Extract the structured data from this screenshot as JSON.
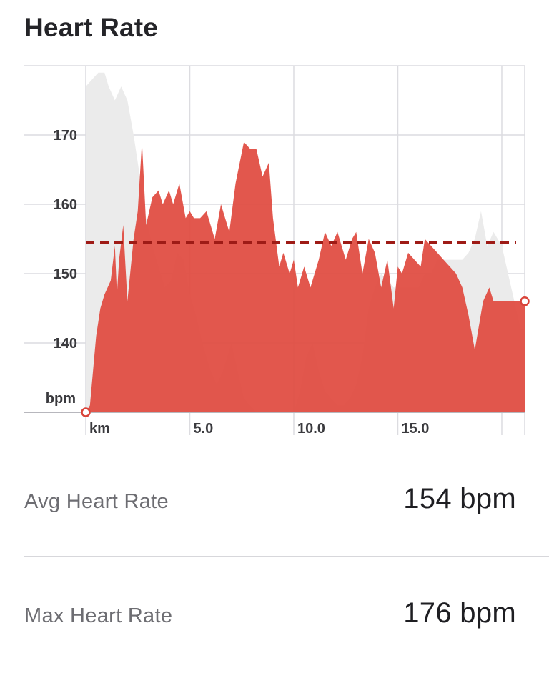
{
  "header": {
    "title": "Heart Rate"
  },
  "chart_data": {
    "type": "area",
    "xlabel": "km",
    "ylabel": "bpm",
    "xlim": [
      0,
      21.1
    ],
    "ylim": [
      130,
      180
    ],
    "x_ticks": [
      5,
      10,
      15
    ],
    "x_tick_labels": [
      "5.0",
      "10.0",
      "15.0"
    ],
    "y_ticks": [
      140,
      150,
      160,
      170
    ],
    "y_tick_labels": [
      "140",
      "150",
      "160",
      "170"
    ],
    "grid": true,
    "colors": {
      "hr": "#e04a3f",
      "elevation": "#ebebeb",
      "avg_line": "#9e1b16",
      "grid": "#dcdce0",
      "axis": "#b7b7bd"
    },
    "average": 154.5,
    "heart_rate": {
      "x": [
        0.0,
        0.2,
        0.5,
        0.7,
        0.9,
        1.2,
        1.4,
        1.5,
        1.6,
        1.8,
        2.0,
        2.1,
        2.3,
        2.5,
        2.7,
        2.9,
        3.2,
        3.5,
        3.7,
        4.0,
        4.2,
        4.5,
        4.8,
        5.0,
        5.2,
        5.5,
        5.8,
        6.2,
        6.5,
        6.9,
        7.2,
        7.6,
        7.9,
        8.2,
        8.5,
        8.8,
        9.0,
        9.3,
        9.5,
        9.8,
        10.0,
        10.2,
        10.5,
        10.8,
        11.2,
        11.5,
        11.8,
        12.1,
        12.5,
        12.8,
        13.0,
        13.3,
        13.6,
        13.9,
        14.2,
        14.5,
        14.8,
        15.0,
        15.2,
        15.5,
        15.8,
        16.1,
        16.3,
        16.6,
        16.9,
        17.2,
        17.5,
        17.8,
        18.1,
        18.4,
        18.7,
        19.1,
        19.4,
        19.6,
        19.9,
        20.1,
        20.4,
        20.6,
        20.9,
        21.1
      ],
      "y": [
        130,
        131,
        141,
        145,
        147,
        149,
        154,
        147,
        152,
        157,
        146,
        149,
        155,
        159,
        169,
        157,
        161,
        162,
        160,
        162,
        160,
        163,
        158,
        159,
        158,
        158,
        159,
        155,
        160,
        156,
        163,
        169,
        168,
        168,
        164,
        166,
        158,
        151,
        153,
        150,
        152,
        148,
        151,
        148,
        152,
        156,
        154,
        156,
        152,
        155,
        156,
        150,
        155,
        153,
        148,
        152,
        145,
        151,
        150,
        153,
        152,
        151,
        155,
        154,
        153,
        152,
        151,
        150,
        148,
        144,
        139,
        146,
        148,
        146,
        146,
        146,
        146,
        146,
        146,
        146
      ]
    },
    "elevation_profile": {
      "x": [
        0.0,
        0.3,
        0.6,
        0.9,
        1.1,
        1.4,
        1.7,
        2.0,
        2.3,
        2.6,
        2.9,
        3.2,
        3.5,
        3.8,
        4.1,
        4.4,
        4.7,
        5.0,
        5.3,
        5.6,
        6.0,
        6.3,
        6.6,
        7.0,
        7.3,
        7.6,
        7.9,
        8.2,
        8.5,
        8.8,
        9.1,
        9.4,
        9.7,
        10.0,
        10.3,
        10.6,
        10.9,
        11.2,
        11.5,
        11.8,
        12.1,
        12.4,
        12.7,
        13.0,
        13.3,
        13.6,
        13.9,
        14.2,
        14.5,
        14.8,
        15.1,
        15.4,
        15.7,
        16.0,
        16.3,
        16.6,
        16.9,
        17.2,
        17.5,
        17.8,
        18.1,
        18.4,
        18.7,
        19.0,
        19.3,
        19.6,
        20.0,
        20.3,
        20.6,
        20.9,
        21.1
      ],
      "y": [
        177,
        178,
        179,
        179,
        177,
        175,
        177,
        175,
        170,
        164,
        158,
        154,
        151,
        148,
        149,
        153,
        152,
        147,
        144,
        140,
        136,
        134,
        136,
        140,
        136,
        132,
        131,
        130,
        130,
        130,
        130,
        130,
        130,
        130,
        133,
        138,
        140,
        136,
        133,
        132,
        131,
        131,
        132,
        134,
        138,
        145,
        148,
        150,
        149,
        148,
        148,
        148,
        148,
        148,
        150,
        150,
        152,
        152,
        152,
        152,
        152,
        153,
        155,
        159,
        154,
        156,
        154,
        150,
        146,
        142,
        142
      ]
    }
  },
  "stats": [
    {
      "label": "Avg Heart Rate",
      "value": "154 bpm"
    },
    {
      "label": "Max Heart Rate",
      "value": "176 bpm"
    }
  ]
}
